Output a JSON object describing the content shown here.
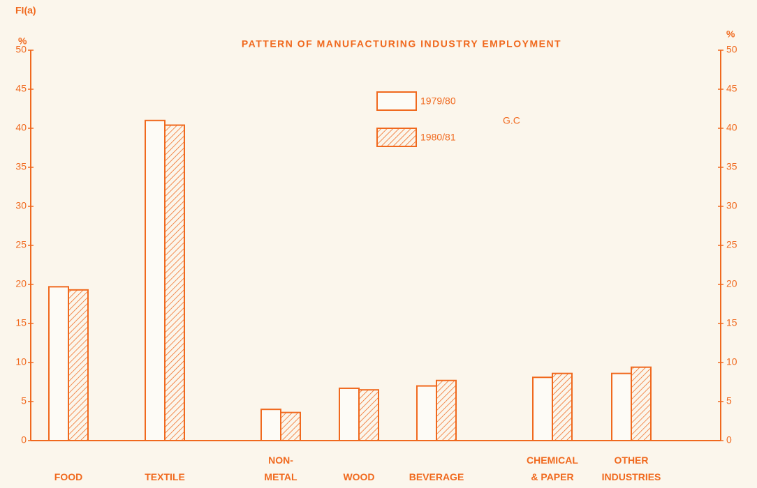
{
  "chart_data": {
    "type": "bar",
    "figure_label": "FI(a)",
    "title": "PATTERN OF MANUFACTURING INDUSTRY EMPLOYMENT",
    "ylabel": "%",
    "y2label": "%",
    "annotation": "G.C",
    "categories": [
      "FOOD",
      "TEXTILE",
      "NON-\nMETAL",
      "WOOD",
      "BEVERAGE",
      "CHEMICAL\n& PAPER",
      "OTHER\nINDUSTRIES"
    ],
    "series": [
      {
        "name": "1979/80",
        "color": "#f0691e",
        "pattern": "open",
        "values": [
          19.7,
          41.0,
          4.0,
          6.7,
          7.0,
          8.1,
          8.6
        ]
      },
      {
        "name": "1980/81",
        "color": "#f0691e",
        "pattern": "hatched",
        "values": [
          19.3,
          40.4,
          3.6,
          6.5,
          7.7,
          8.6,
          9.4
        ]
      }
    ],
    "ylim": [
      0,
      50
    ],
    "yticks": [
      0,
      5,
      10,
      15,
      20,
      25,
      30,
      35,
      40,
      45,
      50
    ],
    "y2lim": [
      0,
      50
    ],
    "y2ticks": [
      0,
      5,
      10,
      15,
      20,
      25,
      30,
      35,
      40,
      45,
      50
    ],
    "grid": false
  }
}
